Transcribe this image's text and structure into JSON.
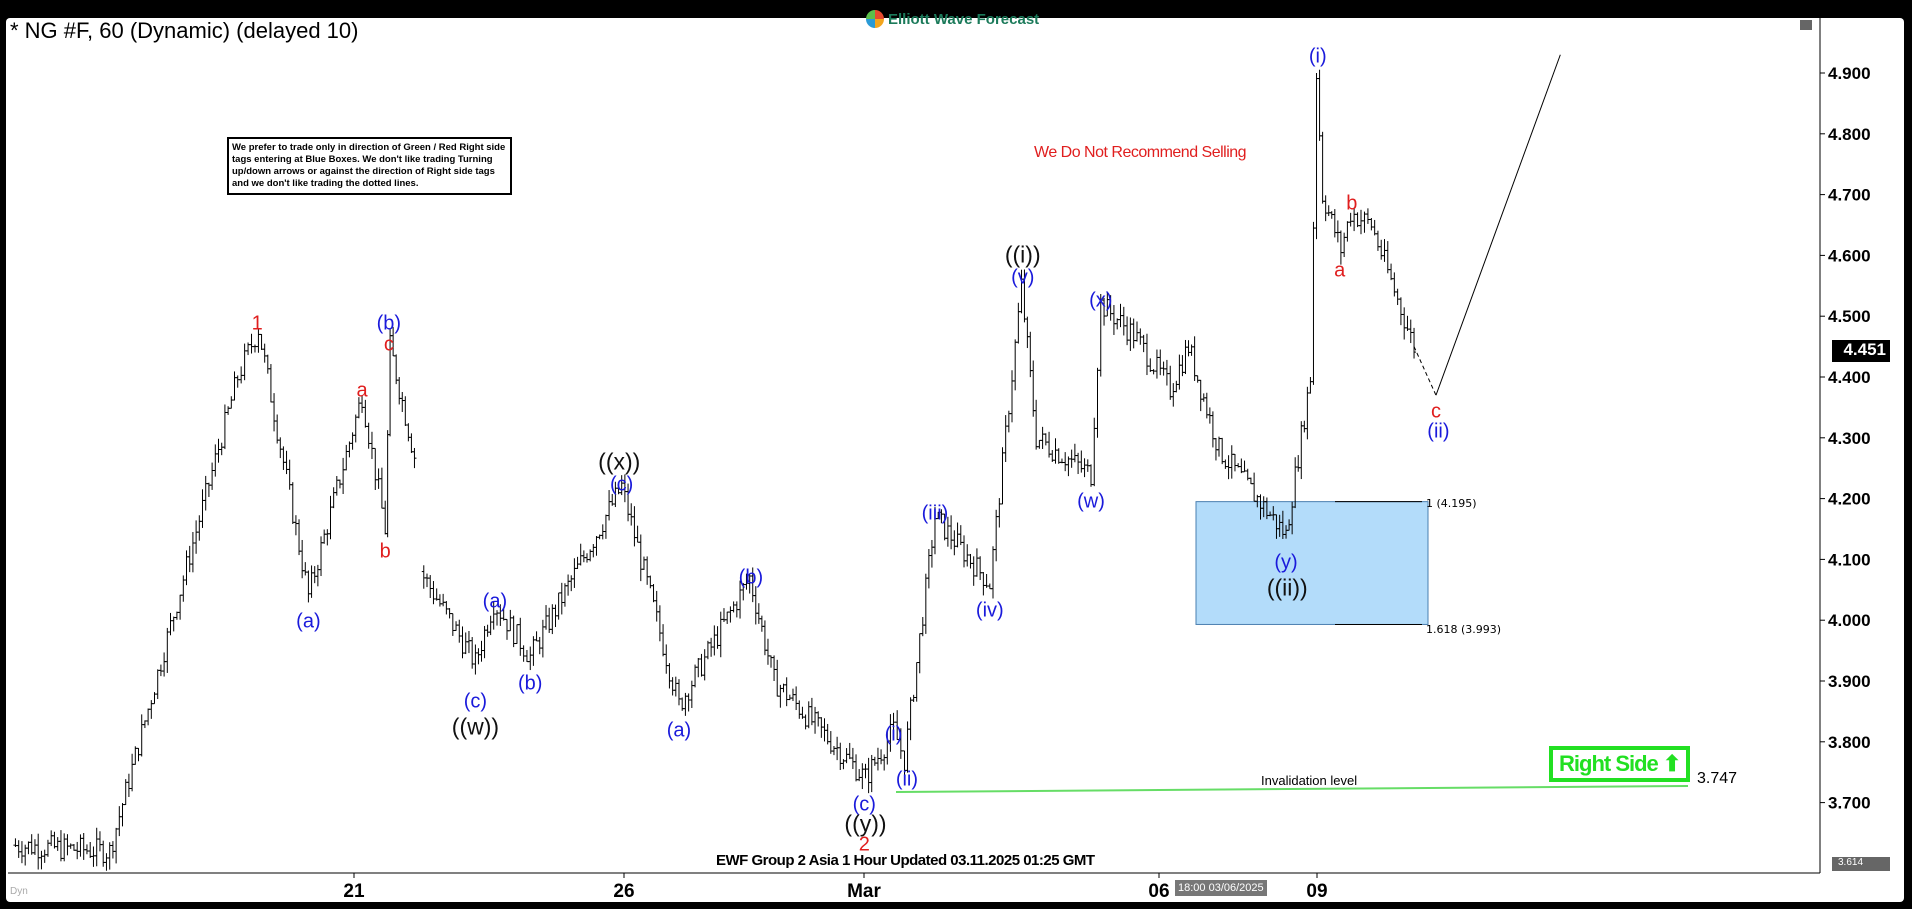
{
  "header": {
    "title": "* NG #F, 60 (Dynamic) (delayed 10)",
    "logo": "Elliott Wave Forecast"
  },
  "note": "We prefer to trade only in direction of Green / Red Right side tags entering at Blue Boxes. We don't like trading Turning up/down arrows or against the direction of Right side tags and we don't like trading the dotted lines.",
  "recommendation": "We Do Not Recommend Selling",
  "footer": "EWF Group 2 Asia 1 Hour Updated 03.11.2025 01:25 GMT",
  "time_cursor": "18:00 03/06/2025",
  "dyn_label": "Dyn",
  "colors": {
    "blue_box": "#b3dcfa",
    "right_side": "#22e022",
    "wave_blue": "#1a1adb",
    "wave_red": "#e01e1e",
    "invalidation": "#66dd66"
  },
  "chart_data": {
    "type": "ohlc",
    "symbol": "NG #F",
    "timeframe": "60",
    "ylim": [
      3.614,
      4.95
    ],
    "y_ticks": [
      "4.900",
      "4.800",
      "4.700",
      "4.600",
      "4.500",
      "4.400",
      "4.300",
      "4.200",
      "4.100",
      "4.000",
      "3.900",
      "3.800",
      "3.700"
    ],
    "x_ticks": [
      "21",
      "26",
      "Mar",
      "06",
      "09"
    ],
    "current_price": "4.451",
    "low_marker": "3.614",
    "pivots": [
      3.63,
      3.62,
      4.4,
      4.48,
      4.04,
      4.37,
      4.15,
      4.45,
      4.27,
      4.08,
      3.93,
      4.03,
      3.94,
      4.22,
      3.86,
      4.07,
      3.9,
      3.74,
      3.82,
      3.77,
      4.17,
      4.06,
      4.55,
      4.3,
      4.24,
      4.52,
      4.47,
      4.38,
      4.45,
      4.28,
      4.14,
      4.4,
      4.9,
      4.7,
      4.61,
      4.67,
      4.65,
      4.45
    ],
    "projection": {
      "dashed_to": 4.37,
      "then_to": 4.93
    },
    "blue_box": {
      "top_label": "1 (4.195)",
      "bottom_label": "1.618 (3.993)",
      "top": 4.195,
      "bottom": 3.993
    },
    "invalidation": {
      "label": "Invalidation level",
      "value": "3.747"
    },
    "right_side": "Right Side ⬆",
    "wave_labels": [
      {
        "text": "1",
        "color": "red"
      },
      {
        "text": "(a)",
        "color": "blue"
      },
      {
        "text": "a",
        "color": "red"
      },
      {
        "text": "b",
        "color": "red"
      },
      {
        "text": "(b)",
        "color": "blue"
      },
      {
        "text": "c",
        "color": "red"
      },
      {
        "text": "(a)",
        "color": "blue"
      },
      {
        "text": "(c)",
        "color": "blue"
      },
      {
        "text": "((w))",
        "color": "black"
      },
      {
        "text": "(b)",
        "color": "blue"
      },
      {
        "text": "((x))",
        "color": "black"
      },
      {
        "text": "(c)",
        "color": "blue"
      },
      {
        "text": "(a)",
        "color": "blue"
      },
      {
        "text": "(b)",
        "color": "blue"
      },
      {
        "text": "(c)",
        "color": "blue"
      },
      {
        "text": "((y))",
        "color": "black"
      },
      {
        "text": "2",
        "color": "red"
      },
      {
        "text": "(i)",
        "color": "blue"
      },
      {
        "text": "(ii)",
        "color": "blue"
      },
      {
        "text": "(iii)",
        "color": "blue"
      },
      {
        "text": "(iv)",
        "color": "blue"
      },
      {
        "text": "((i))",
        "color": "black"
      },
      {
        "text": "(v)",
        "color": "blue"
      },
      {
        "text": "(x)",
        "color": "blue"
      },
      {
        "text": "(w)",
        "color": "blue"
      },
      {
        "text": "(y)",
        "color": "blue"
      },
      {
        "text": "((ii))",
        "color": "black"
      },
      {
        "text": "(i)",
        "color": "blue"
      },
      {
        "text": "b",
        "color": "red"
      },
      {
        "text": "a",
        "color": "red"
      },
      {
        "text": "c",
        "color": "red"
      },
      {
        "text": "(ii)",
        "color": "blue"
      }
    ]
  }
}
